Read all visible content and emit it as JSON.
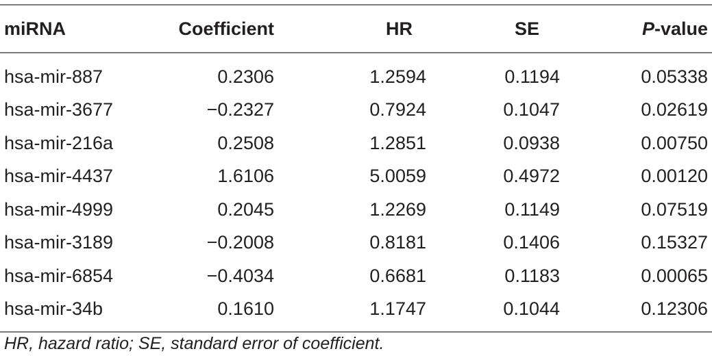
{
  "table": {
    "headers": {
      "mirna": "miRNA",
      "coefficient": "Coefficient",
      "hr": "HR",
      "se": "SE",
      "p_prefix": "P",
      "p_suffix": "-value"
    },
    "rows": [
      {
        "mirna": "hsa-mir-887",
        "coefficient": "0.2306",
        "hr": "1.2594",
        "se": "0.1194",
        "p": "0.05338"
      },
      {
        "mirna": "hsa-mir-3677",
        "coefficient": "−0.2327",
        "hr": "0.7924",
        "se": "0.1047",
        "p": "0.02619"
      },
      {
        "mirna": "hsa-mir-216a",
        "coefficient": "0.2508",
        "hr": "1.2851",
        "se": "0.0938",
        "p": "0.00750"
      },
      {
        "mirna": "hsa-mir-4437",
        "coefficient": "1.6106",
        "hr": "5.0059",
        "se": "0.4972",
        "p": "0.00120"
      },
      {
        "mirna": "hsa-mir-4999",
        "coefficient": "0.2045",
        "hr": "1.2269",
        "se": "0.1149",
        "p": "0.07519"
      },
      {
        "mirna": "hsa-mir-3189",
        "coefficient": "−0.2008",
        "hr": "0.8181",
        "se": "0.1406",
        "p": "0.15327"
      },
      {
        "mirna": "hsa-mir-6854",
        "coefficient": "−0.4034",
        "hr": "0.6681",
        "se": "0.1183",
        "p": "0.00065"
      },
      {
        "mirna": "hsa-mir-34b",
        "coefficient": "0.1610",
        "hr": "1.1747",
        "se": "0.1044",
        "p": "0.12306"
      }
    ]
  },
  "footnote": "HR, hazard ratio; SE, standard error of coefficient."
}
